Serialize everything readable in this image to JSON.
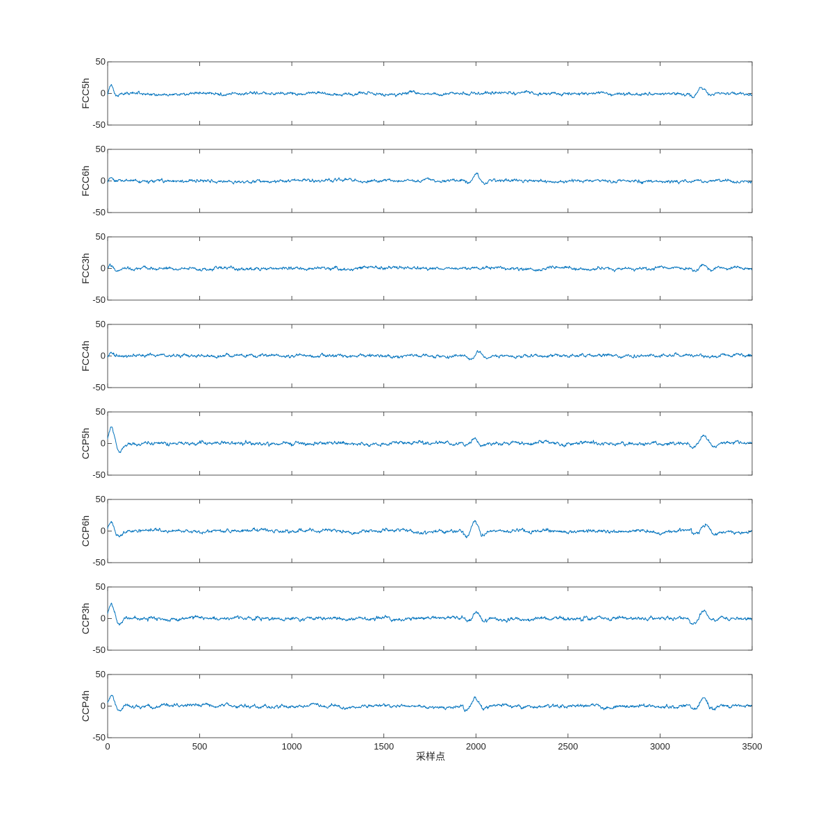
{
  "chart_data": {
    "type": "line",
    "layout": "stacked-subplots",
    "xlabel": "采样点",
    "xlim": [
      0,
      3500
    ],
    "xticks": [
      0,
      500,
      1000,
      1500,
      2000,
      2500,
      3000,
      3500
    ],
    "xtick_labels": [
      "0",
      "500",
      "1000",
      "1500",
      "2000",
      "2500",
      "3000",
      "3500"
    ],
    "ylim": [
      -50,
      50
    ],
    "yticks": [
      -50,
      0,
      50
    ],
    "ytick_labels": [
      "-50",
      "0",
      "50"
    ],
    "grid": false,
    "line_color": "#0072BD",
    "sample_count": 3500,
    "channels": [
      {
        "ylabel": "FCC5h",
        "noise_amplitude": 2.5,
        "events": [
          {
            "x": 15,
            "amp": 14,
            "width": 40
          },
          {
            "x": 3220,
            "amp": 9,
            "width": 60
          }
        ]
      },
      {
        "ylabel": "FCC6h",
        "noise_amplitude": 2.5,
        "events": [
          {
            "x": 15,
            "amp": 4,
            "width": 30
          },
          {
            "x": 2000,
            "amp": 8,
            "width": 60
          }
        ]
      },
      {
        "ylabel": "FCC3h",
        "noise_amplitude": 2.5,
        "events": [
          {
            "x": 15,
            "amp": 5,
            "width": 40
          },
          {
            "x": 3230,
            "amp": 6,
            "width": 60
          }
        ]
      },
      {
        "ylabel": "FCC4h",
        "noise_amplitude": 2.5,
        "events": [
          {
            "x": 15,
            "amp": 4,
            "width": 30
          },
          {
            "x": 2010,
            "amp": 8,
            "width": 60
          }
        ]
      },
      {
        "ylabel": "CCP5h",
        "noise_amplitude": 2.8,
        "events": [
          {
            "x": 15,
            "amp": 25,
            "width": 60
          },
          {
            "x": 1990,
            "amp": 8,
            "width": 60
          },
          {
            "x": 3230,
            "amp": 12,
            "width": 70
          }
        ]
      },
      {
        "ylabel": "CCP6h",
        "noise_amplitude": 2.8,
        "events": [
          {
            "x": 15,
            "amp": 16,
            "width": 55
          },
          {
            "x": 1990,
            "amp": 14,
            "width": 60
          },
          {
            "x": 3240,
            "amp": 12,
            "width": 70
          }
        ]
      },
      {
        "ylabel": "CCP3h",
        "noise_amplitude": 2.8,
        "events": [
          {
            "x": 15,
            "amp": 22,
            "width": 60
          },
          {
            "x": 2000,
            "amp": 8,
            "width": 60
          },
          {
            "x": 3230,
            "amp": 12,
            "width": 70
          }
        ]
      },
      {
        "ylabel": "CCP4h",
        "noise_amplitude": 2.8,
        "events": [
          {
            "x": 15,
            "amp": 16,
            "width": 55
          },
          {
            "x": 1990,
            "amp": 12,
            "width": 60
          },
          {
            "x": 3230,
            "amp": 12,
            "width": 70
          }
        ]
      }
    ]
  }
}
